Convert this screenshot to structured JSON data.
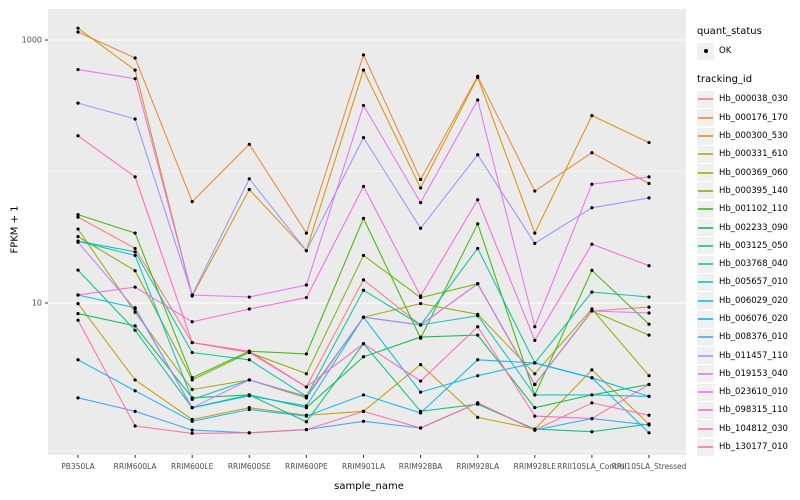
{
  "chart_data": {
    "type": "line",
    "title": "",
    "xlabel": "sample_name",
    "ylabel": "FPKM + 1",
    "yscale": "log10",
    "ylim": [
      1,
      1300
    ],
    "y_ticks": [
      {
        "label": "1000",
        "value": 1000
      },
      {
        "label": "10",
        "value": 10
      }
    ],
    "gridlines": {
      "major_values": [
        1000,
        10
      ],
      "minor_values": [
        100,
        0.75
      ]
    },
    "categories": [
      "PB350LA",
      "RRIM600LA",
      "RRIM600LE",
      "RRIM600SE",
      "RRIM600PE",
      "RRIM901LA",
      "RRIM928BA",
      "RRIM928LA",
      "RRIM928LE",
      "RRII105LA_Control",
      "RRII105LA_Stressed"
    ],
    "point_marker": {
      "shape": "filled-point",
      "color": "#000000"
    },
    "legend": {
      "quant_status": {
        "title": "quant_status",
        "items": [
          {
            "label": "OK",
            "marker": "point"
          }
        ]
      },
      "tracking_id": {
        "title": "tracking_id"
      }
    },
    "series": [
      {
        "name": "Hb_000038_030",
        "color": "#F8766D",
        "values": [
          45,
          26,
          5.0,
          4.3,
          2.3,
          15,
          6.8,
          14,
          2.4,
          8.7,
          9.3
        ]
      },
      {
        "name": "Hb_000176_170",
        "color": "#EA8331",
        "values": [
          1150,
          730,
          59,
          161,
          34,
          770,
          87,
          530,
          71,
          139,
          81
        ]
      },
      {
        "name": "Hb_000300_530",
        "color": "#D89000",
        "values": [
          1230,
          590,
          11.3,
          73,
          25,
          590,
          75,
          520,
          34,
          266,
          166
        ]
      },
      {
        "name": "Hb_000331_610",
        "color": "#C09B00",
        "values": [
          9.9,
          2.6,
          1.3,
          1.6,
          1.4,
          1.5,
          3.4,
          1.35,
          1.1,
          3.1,
          1.2
        ]
      },
      {
        "name": "Hb_000369_060",
        "color": "#A3A500",
        "values": [
          36.5,
          8.5,
          2.2,
          2.6,
          1.9,
          7.8,
          9.9,
          8.2,
          2.9,
          9.0,
          2.8
        ]
      },
      {
        "name": "Hb_000395_140",
        "color": "#7CAE00",
        "values": [
          32,
          17.6,
          2.6,
          4.2,
          2.9,
          23,
          11,
          14,
          2.4,
          8.7,
          5.7
        ]
      },
      {
        "name": "Hb_001102_110",
        "color": "#39B600",
        "values": [
          47,
          34,
          2.7,
          4.3,
          4.1,
          44,
          5.4,
          40,
          2.0,
          17.7,
          6.9
        ]
      },
      {
        "name": "Hb_002233_090",
        "color": "#00BB4E",
        "values": [
          8.3,
          6.7,
          1.9,
          2.0,
          1.6,
          3.9,
          5.5,
          5.7,
          1.6,
          2.0,
          2.4
        ]
      },
      {
        "name": "Hb_003125_050",
        "color": "#00BF7D",
        "values": [
          17.8,
          6.2,
          1.6,
          2.0,
          1.25,
          4.9,
          1.5,
          1.7,
          1.1,
          1.05,
          1.2
        ]
      },
      {
        "name": "Hb_003768_040",
        "color": "#00C1A3",
        "values": [
          29.5,
          24.5,
          4.2,
          3.7,
          1.95,
          12.5,
          6.8,
          26,
          3.5,
          12.1,
          11.1
        ]
      },
      {
        "name": "Hb_005657_010",
        "color": "#00BFC4",
        "values": [
          29.5,
          23,
          1.85,
          2.6,
          1.95,
          7.8,
          6.8,
          8.0,
          2.0,
          2.0,
          1.95
        ]
      },
      {
        "name": "Hb_006029_020",
        "color": "#00BAE0",
        "values": [
          11.5,
          9.2,
          1.6,
          1.97,
          1.65,
          7.8,
          2.1,
          2.8,
          3.5,
          2.7,
          1.03
        ]
      },
      {
        "name": "Hb_006076_020",
        "color": "#00B0F6",
        "values": [
          3.7,
          2.15,
          1.26,
          1.55,
          1.38,
          2.0,
          1.46,
          3.7,
          3.5,
          2.7,
          1.95
        ]
      },
      {
        "name": "Hb_008376_010",
        "color": "#35A2FF",
        "values": [
          1.9,
          1.5,
          1.08,
          1.03,
          1.09,
          1.26,
          1.12,
          1.74,
          1.08,
          1.32,
          1.18
        ]
      },
      {
        "name": "Hb_011457_110",
        "color": "#9590FF",
        "values": [
          331,
          251,
          11.5,
          88,
          25,
          181,
          37,
          134,
          28.4,
          53,
          63
        ]
      },
      {
        "name": "Hb_019153_040",
        "color": "#C77CFF",
        "values": [
          29,
          9.0,
          1.6,
          2.6,
          1.95,
          7.8,
          6.8,
          14,
          2.4,
          8.7,
          8.4
        ]
      },
      {
        "name": "Hb_023610_010",
        "color": "#E76BF3",
        "values": [
          596,
          508,
          11.5,
          11.1,
          13.7,
          318,
          58,
          350,
          6.6,
          80,
          91
        ]
      },
      {
        "name": "Hb_098315_110",
        "color": "#FA62DB",
        "values": [
          11.5,
          13.2,
          7.2,
          9.0,
          11,
          77,
          11.3,
          61,
          5.2,
          28,
          19.2
        ]
      },
      {
        "name": "Hb_104812_030",
        "color": "#FF62BC",
        "values": [
          187,
          91,
          5.0,
          4.2,
          2.3,
          4.9,
          2.55,
          6.6,
          1.38,
          1.32,
          2.4
        ]
      },
      {
        "name": "Hb_130177_010",
        "color": "#FF6A98",
        "values": [
          7.4,
          1.16,
          1.02,
          1.03,
          1.09,
          1.5,
          1.12,
          1.74,
          1.08,
          1.74,
          1.4
        ]
      }
    ],
    "panel_background": "#EBEBEB",
    "gridline_color": "#FFFFFF",
    "axis_text_color": "#4D4D4D"
  }
}
